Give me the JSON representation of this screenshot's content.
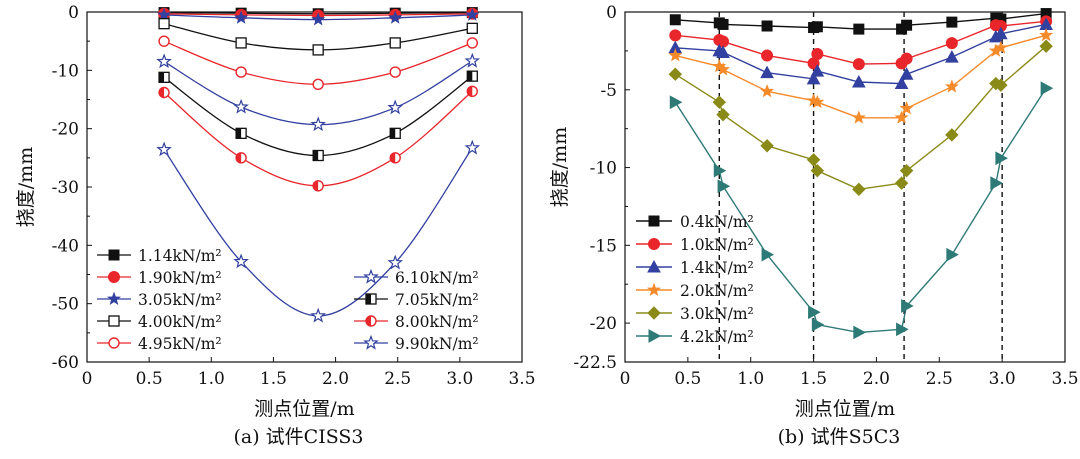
{
  "chart_data": [
    {
      "type": "line",
      "caption": "(a) 试件CISS3",
      "xlabel": "测点位置/m",
      "ylabel": "挠度/mm",
      "xlim": [
        0,
        3.5
      ],
      "ylim": [
        -60,
        0
      ],
      "xticks": [
        "0",
        "0.5",
        "1.0",
        "1.5",
        "2.0",
        "2.5",
        "3.0",
        "3.5"
      ],
      "yticks": [
        "0",
        "-10",
        "-20",
        "-30",
        "-40",
        "-50",
        "-60"
      ],
      "legend_columns": 2,
      "x": [
        0.62,
        1.24,
        1.86,
        2.48,
        3.1
      ],
      "series": [
        {
          "name": "1.14kN/m²",
          "marker": "square-filled",
          "values": [
            -0.1,
            -0.2,
            -0.3,
            -0.2,
            -0.1
          ]
        },
        {
          "name": "1.90kN/m²",
          "marker": "circle-filled",
          "values": [
            -0.3,
            -0.5,
            -0.6,
            -0.5,
            -0.3
          ]
        },
        {
          "name": "3.05kN/m²",
          "marker": "star-filled",
          "values": [
            -0.5,
            -1.0,
            -1.3,
            -1.0,
            -0.5
          ]
        },
        {
          "name": "4.00kN/m²",
          "marker": "square-open",
          "values": [
            -2.0,
            -5.3,
            -6.5,
            -5.3,
            -2.8
          ]
        },
        {
          "name": "4.95kN/m²",
          "marker": "circle-open",
          "values": [
            -5.0,
            -10.3,
            -12.4,
            -10.3,
            -5.3
          ]
        },
        {
          "name": "6.10kN/m²",
          "marker": "star-open",
          "values": [
            -8.5,
            -16.3,
            -19.3,
            -16.4,
            -8.4
          ]
        },
        {
          "name": "7.05kN/m²",
          "marker": "square-half",
          "values": [
            -11.2,
            -20.8,
            -24.6,
            -20.8,
            -11.0
          ]
        },
        {
          "name": "8.00kN/m²",
          "marker": "circle-half",
          "values": [
            -13.8,
            -25.0,
            -29.8,
            -25.0,
            -13.6
          ]
        },
        {
          "name": "9.90kN/m²",
          "marker": "star-open",
          "values": [
            -23.6,
            -42.8,
            -52.1,
            -43.0,
            -23.3
          ]
        }
      ]
    },
    {
      "type": "line",
      "caption": "(b) 试件S5C3",
      "xlabel": "测点位置/m",
      "ylabel": "挠度/mm",
      "xlim": [
        0,
        3.5
      ],
      "ylim": [
        -22.5,
        0
      ],
      "xticks": [
        "0",
        "0.5",
        "1.0",
        "1.5",
        "2.0",
        "2.5",
        "3.0",
        "3.5"
      ],
      "yticks": [
        "0",
        "-5",
        "-10",
        "-15",
        "-20",
        "-22.5"
      ],
      "vlines": [
        0.75,
        1.5,
        2.22,
        3.0
      ],
      "legend_columns": 1,
      "series": [
        {
          "name": "0.4kN/m²",
          "marker": "square-filled",
          "x": [
            0.4,
            0.75,
            0.78,
            1.13,
            1.5,
            1.53,
            1.86,
            2.2,
            2.24,
            2.6,
            2.95,
            2.99,
            3.35
          ],
          "values": [
            -0.5,
            -0.7,
            -0.8,
            -0.9,
            -1.0,
            -0.95,
            -1.1,
            -1.1,
            -0.85,
            -0.65,
            -0.4,
            -0.45,
            -0.1
          ]
        },
        {
          "name": "1.0kN/m²",
          "marker": "circle-filled",
          "x": [
            0.4,
            0.75,
            0.78,
            1.13,
            1.5,
            1.53,
            1.86,
            2.2,
            2.24,
            2.6,
            2.95,
            2.99,
            3.35
          ],
          "values": [
            -1.5,
            -1.8,
            -1.9,
            -2.8,
            -3.3,
            -2.7,
            -3.35,
            -3.3,
            -3.0,
            -2.0,
            -0.85,
            -0.9,
            -0.6
          ]
        },
        {
          "name": "1.4kN/m²",
          "marker": "triangle-up",
          "x": [
            0.4,
            0.75,
            0.78,
            1.13,
            1.5,
            1.53,
            1.86,
            2.2,
            2.24,
            2.6,
            2.95,
            2.99,
            3.35
          ],
          "values": [
            -2.3,
            -2.5,
            -2.6,
            -3.9,
            -4.3,
            -3.8,
            -4.5,
            -4.6,
            -4.0,
            -2.9,
            -1.6,
            -1.4,
            -0.8
          ]
        },
        {
          "name": "2.0kN/m²",
          "marker": "star-filled",
          "x": [
            0.4,
            0.75,
            0.78,
            1.13,
            1.5,
            1.53,
            1.86,
            2.2,
            2.24,
            2.6,
            2.95,
            2.99,
            3.35
          ],
          "values": [
            -2.8,
            -3.5,
            -3.7,
            -5.1,
            -5.7,
            -5.8,
            -6.8,
            -6.8,
            -6.2,
            -4.8,
            -2.5,
            -2.3,
            -1.5
          ]
        },
        {
          "name": "3.0kN/m²",
          "marker": "diamond",
          "x": [
            0.4,
            0.75,
            0.78,
            1.13,
            1.5,
            1.53,
            1.86,
            2.2,
            2.24,
            2.6,
            2.95,
            2.99,
            3.35
          ],
          "values": [
            -4.0,
            -5.8,
            -6.6,
            -8.6,
            -9.5,
            -10.2,
            -11.4,
            -11.0,
            -10.2,
            -7.9,
            -4.6,
            -4.7,
            -2.2
          ]
        },
        {
          "name": "4.2kN/m²",
          "marker": "triangle-right",
          "x": [
            0.4,
            0.75,
            0.78,
            1.13,
            1.5,
            1.53,
            1.86,
            2.2,
            2.24,
            2.6,
            2.95,
            2.99,
            3.35
          ],
          "values": [
            -5.8,
            -10.2,
            -11.2,
            -15.6,
            -19.3,
            -20.1,
            -20.6,
            -20.4,
            -18.9,
            -15.6,
            -11.0,
            -9.4,
            -4.9
          ]
        }
      ]
    }
  ],
  "colors": {
    "black": "#111111",
    "red": "#e8262b",
    "blue": "#3240a0",
    "orange": "#f58a2a",
    "olive": "#8a8a18",
    "teal": "#2e7a76"
  }
}
